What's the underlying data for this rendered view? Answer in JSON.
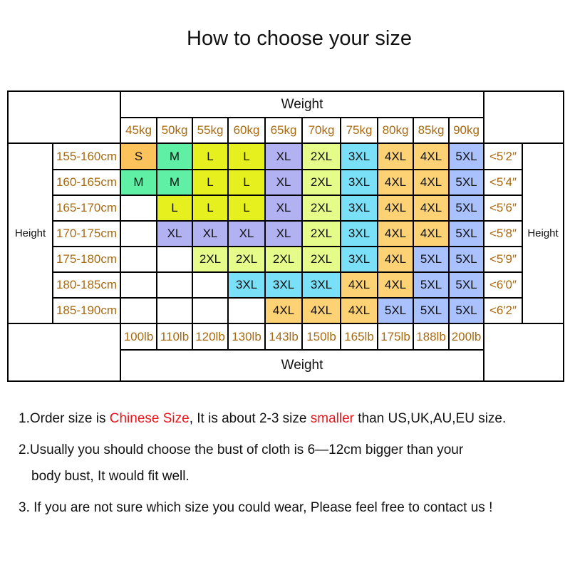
{
  "title": "How to choose your size",
  "table": {
    "weight_label": "Weight",
    "height_label": "Height",
    "kg": [
      "45kg",
      "50kg",
      "55kg",
      "60kg",
      "65kg",
      "70kg",
      "75kg",
      "80kg",
      "85kg",
      "90kg"
    ],
    "lb": [
      "100lb",
      "110lb",
      "120lb",
      "130lb",
      "143lb",
      "150lb",
      "165lb",
      "175lb",
      "188lb",
      "200lb"
    ],
    "rows": [
      {
        "cm": "155-160cm",
        "ft": "<5′2″",
        "sizes": [
          "S",
          "M",
          "L",
          "L",
          "XL",
          "2XL",
          "3XL",
          "4XL",
          "4XL",
          "5XL"
        ]
      },
      {
        "cm": "160-165cm",
        "ft": "<5′4″",
        "sizes": [
          "M",
          "M",
          "L",
          "L",
          "XL",
          "2XL",
          "3XL",
          "4XL",
          "4XL",
          "5XL"
        ]
      },
      {
        "cm": "165-170cm",
        "ft": "<5′6″",
        "sizes": [
          "",
          "L",
          "L",
          "L",
          "XL",
          "2XL",
          "3XL",
          "4XL",
          "4XL",
          "5XL"
        ]
      },
      {
        "cm": "170-175cm",
        "ft": "<5′8″",
        "sizes": [
          "",
          "XL",
          "XL",
          "XL",
          "XL",
          "2XL",
          "3XL",
          "4XL",
          "4XL",
          "5XL"
        ]
      },
      {
        "cm": "175-180cm",
        "ft": "<5′9″",
        "sizes": [
          "",
          "",
          "2XL",
          "2XL",
          "2XL",
          "2XL",
          "3XL",
          "4XL",
          "5XL",
          "5XL"
        ]
      },
      {
        "cm": "180-185cm",
        "ft": "<6′0″",
        "sizes": [
          "",
          "",
          "",
          "3XL",
          "3XL",
          "3XL",
          "4XL",
          "4XL",
          "5XL",
          "5XL"
        ]
      },
      {
        "cm": "185-190cm",
        "ft": "<6′2″",
        "sizes": [
          "",
          "",
          "",
          "",
          "4XL",
          "4XL",
          "4XL",
          "5XL",
          "5XL",
          "5XL"
        ]
      }
    ],
    "size_colors": {
      "S": "#fcc25c",
      "M": "#5ff0a6",
      "L": "#e6f01e",
      "XL": "#b2b2f2",
      "2XL": "#e6fc8a",
      "3XL": "#7ae0f8",
      "4XL": "#fcd274",
      "5XL": "#a9c1fc"
    }
  },
  "notes": {
    "n1_a": "1.Order size is ",
    "n1_red1": "Chinese Size",
    "n1_b": ", It is about 2-3 size ",
    "n1_red2": "smaller",
    "n1_c": " than US,UK,AU,EU size.",
    "n2_line1": "2.Usually you should choose the bust of cloth is 6—12cm bigger than your",
    "n2_line2": "body bust, It would fit well.",
    "n3": "3. If you are not sure which size you could wear, Please feel free to contact us !"
  }
}
